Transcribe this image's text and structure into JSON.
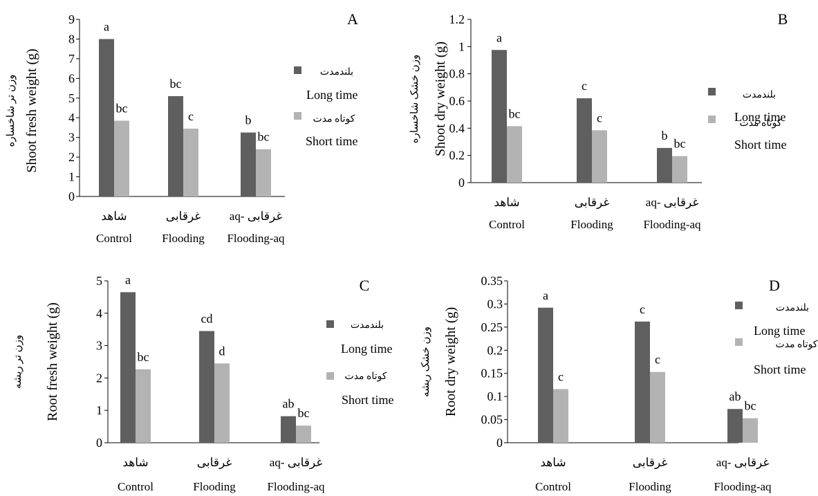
{
  "colors": {
    "long": "#5f5f5f",
    "short": "#b3b3b3",
    "axis": "#000000"
  },
  "legend": {
    "long_fa": "بلندمدت",
    "long_en": "Long time",
    "short_fa": "کوتاه مدت",
    "short_en": "Short time"
  },
  "chart_data": [
    {
      "panel": "A",
      "type": "bar",
      "categories": [
        {
          "fa": "شاهد",
          "en": "Control"
        },
        {
          "fa": "غرقابی",
          "en": "Flooding"
        },
        {
          "fa": "غرقابی -aq",
          "en": "Flooding-aq"
        }
      ],
      "series": [
        {
          "name": "Long time",
          "values": [
            8.0,
            5.1,
            3.25
          ],
          "labels": [
            "a",
            "bc",
            "b"
          ]
        },
        {
          "name": "Short time",
          "values": [
            3.85,
            3.45,
            2.4
          ],
          "labels": [
            "bc",
            "c",
            "bc"
          ]
        }
      ],
      "ylabel": "Shoot fresh weight (g)",
      "ylabel_fa": "وزن تر شاخساره",
      "ylim": [
        0,
        9
      ],
      "yticks": [
        "0",
        "1",
        "2",
        "3",
        "4",
        "5",
        "6",
        "7",
        "8",
        "9"
      ]
    },
    {
      "panel": "B",
      "type": "bar",
      "categories": [
        {
          "fa": "شاهد",
          "en": "Control"
        },
        {
          "fa": "غرقابی",
          "en": "Flooding"
        },
        {
          "fa": "غرقابی -aq",
          "en": "Flooding-aq"
        }
      ],
      "series": [
        {
          "name": "Long time",
          "values": [
            0.975,
            0.62,
            0.255
          ],
          "labels": [
            "a",
            "c",
            "b"
          ]
        },
        {
          "name": "Short time",
          "values": [
            0.415,
            0.385,
            0.195
          ],
          "labels": [
            "bc",
            "c",
            "bc"
          ]
        }
      ],
      "ylabel": "Shoot dry weight (g)",
      "ylabel_fa": "وزن خشک شاخساره",
      "ylim": [
        0,
        1.2
      ],
      "yticks": [
        "0",
        "0.2",
        "0.4",
        "0.6",
        "0.8",
        "1",
        "1.2"
      ]
    },
    {
      "panel": "C",
      "type": "bar",
      "categories": [
        {
          "fa": "شاهد",
          "en": "Control"
        },
        {
          "fa": "غرقابی",
          "en": "Flooding"
        },
        {
          "fa": "غرقابی -aq",
          "en": "Flooding-aq"
        }
      ],
      "series": [
        {
          "name": "Long time",
          "values": [
            4.65,
            3.45,
            0.82
          ],
          "labels": [
            "a",
            "cd",
            "ab"
          ]
        },
        {
          "name": "Short time",
          "values": [
            2.27,
            2.45,
            0.53
          ],
          "labels": [
            "bc",
            "d",
            "bc"
          ]
        }
      ],
      "ylabel": "Root fresh weight (g)",
      "ylabel_fa": "وزن تر ریشه",
      "ylim": [
        0,
        5
      ],
      "yticks": [
        "0",
        "1",
        "2",
        "3",
        "4",
        "5"
      ]
    },
    {
      "panel": "D",
      "type": "bar",
      "categories": [
        {
          "fa": "شاهد",
          "en": "Control"
        },
        {
          "fa": "غرقابی",
          "en": "Flooding"
        },
        {
          "fa": "غرقابی -aq",
          "en": "Flooding-aq"
        }
      ],
      "series": [
        {
          "name": "Long time",
          "values": [
            0.292,
            0.262,
            0.073
          ],
          "labels": [
            "a",
            "c",
            "ab"
          ]
        },
        {
          "name": "Short time",
          "values": [
            0.116,
            0.153,
            0.053
          ],
          "labels": [
            "c",
            "c",
            "bc"
          ]
        }
      ],
      "ylabel": "Root dry weight (g)",
      "ylabel_fa": "وزن خشک ریشه",
      "ylim": [
        0,
        0.35
      ],
      "yticks": [
        "0",
        "0.05",
        "0.1",
        "0.15",
        "0.2",
        "0.25",
        "0.3",
        "0.35"
      ]
    }
  ]
}
